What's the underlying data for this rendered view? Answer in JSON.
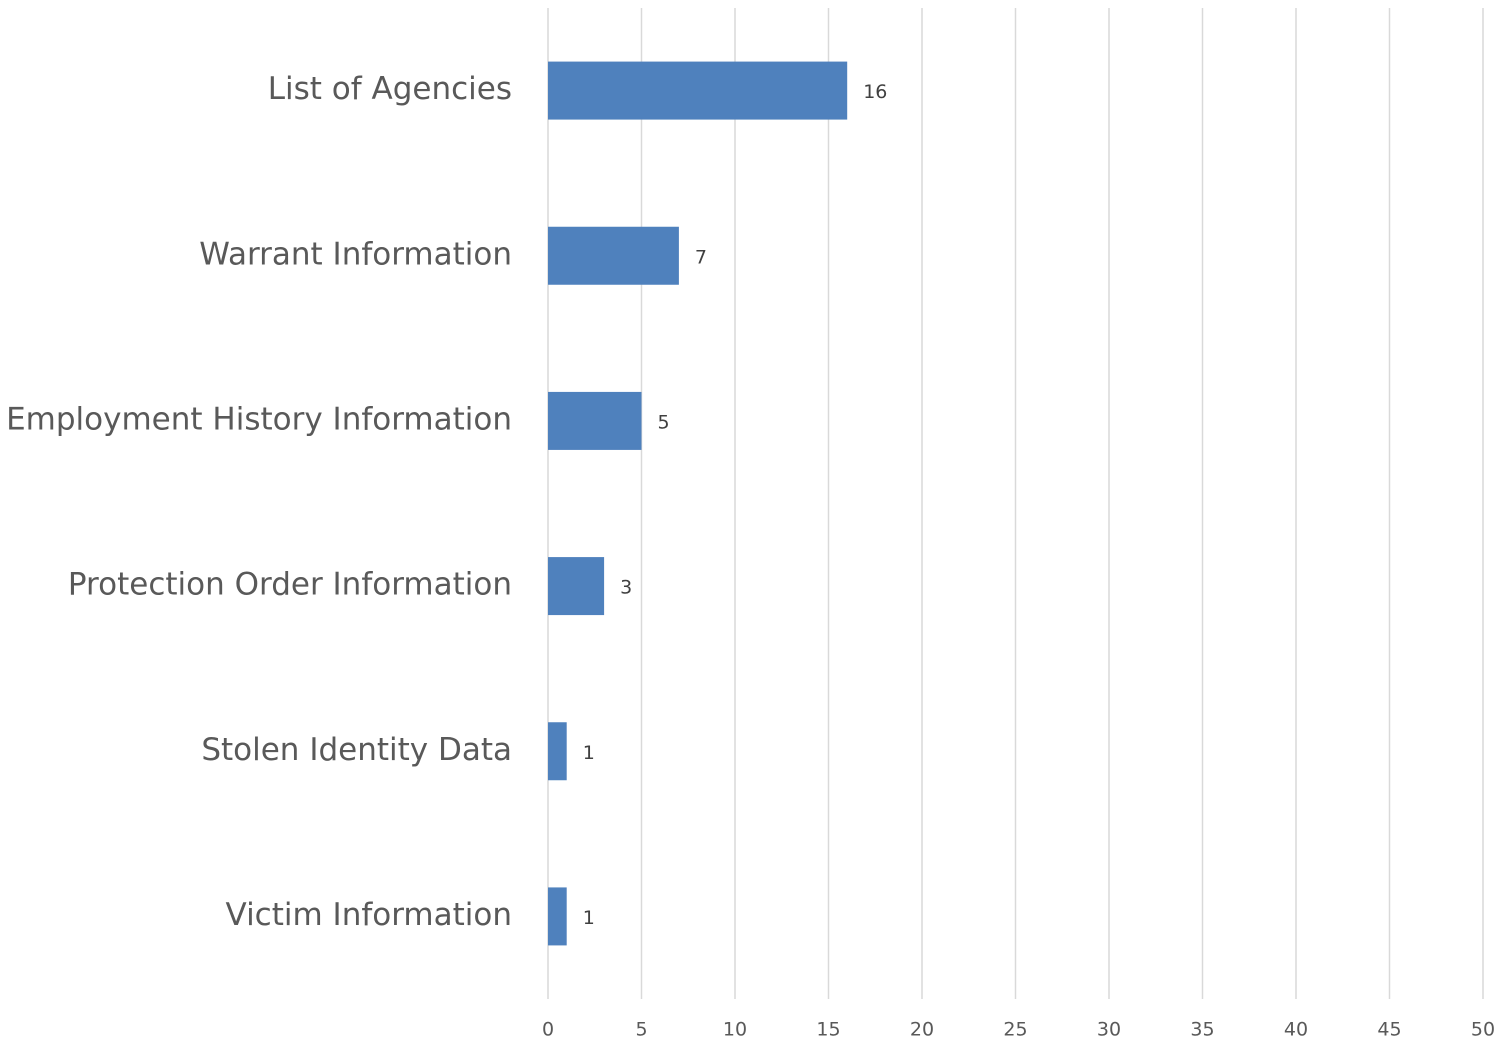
{
  "chart_data": {
    "type": "barh",
    "categories": [
      "List of Agencies",
      "Warrant Information",
      "Employment History Information",
      "Protection Order Information",
      "Stolen Identity Data",
      "Victim Information"
    ],
    "values": [
      16,
      7,
      5,
      3,
      1,
      1
    ],
    "color": "#4f81bd",
    "xlim": [
      0,
      50
    ],
    "xticks": [
      0,
      5,
      10,
      15,
      20,
      25,
      30,
      35,
      40,
      45,
      50
    ],
    "grid": true
  }
}
